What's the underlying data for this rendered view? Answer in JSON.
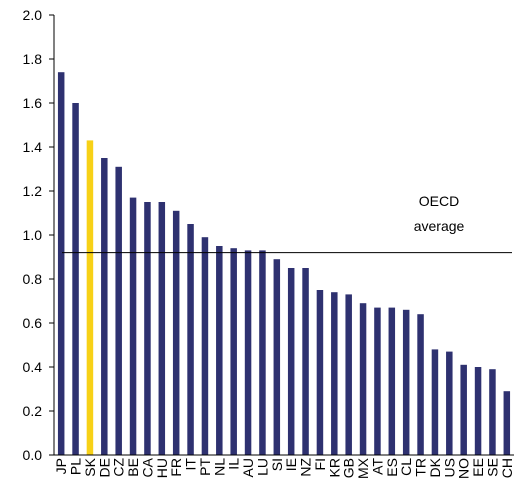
{
  "chart_data": {
    "type": "bar",
    "categories": [
      "JP",
      "PL",
      "SK",
      "DE",
      "CZ",
      "BE",
      "CA",
      "HU",
      "FR",
      "IT",
      "PT",
      "NL",
      "IL",
      "AU",
      "LU",
      "SI",
      "IE",
      "NZ",
      "FI",
      "KR",
      "GB",
      "MX",
      "AT",
      "ES",
      "CL",
      "TR",
      "DK",
      "US",
      "NO",
      "EE",
      "SE",
      "CH"
    ],
    "values": [
      1.74,
      1.6,
      1.43,
      1.35,
      1.31,
      1.17,
      1.15,
      1.15,
      1.11,
      1.05,
      0.99,
      0.95,
      0.94,
      0.93,
      0.93,
      0.89,
      0.85,
      0.85,
      0.75,
      0.74,
      0.73,
      0.69,
      0.67,
      0.67,
      0.66,
      0.64,
      0.48,
      0.47,
      0.41,
      0.4,
      0.39,
      0.29
    ],
    "highlight_category": "SK",
    "bar_color": "#2e3170",
    "highlight_color": "#f7d117",
    "ylim": [
      0,
      2.0
    ],
    "yticks": [
      "0.0",
      "0.2",
      "0.4",
      "0.6",
      "0.8",
      "1.0",
      "1.2",
      "1.4",
      "1.6",
      "1.8",
      "2.0"
    ],
    "grid": false,
    "reference_line": {
      "value": 0.92,
      "label_line1": "OECD",
      "label_line2": "average"
    }
  }
}
